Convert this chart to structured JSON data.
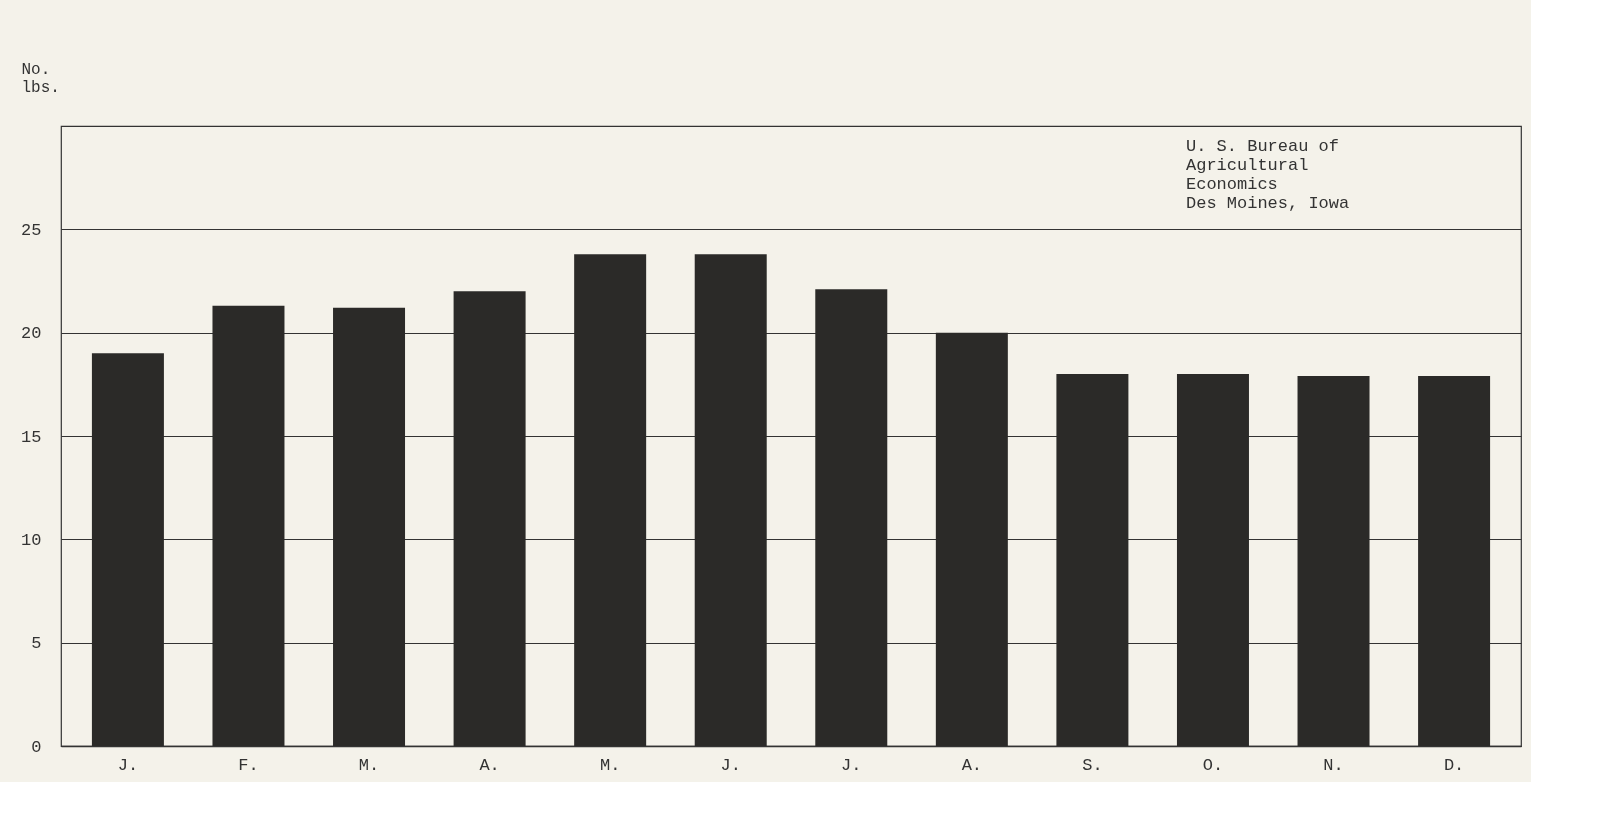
{
  "chart_data": {
    "type": "bar",
    "ylabel": "No. lbs.",
    "categories": [
      "J.",
      "F.",
      "M.",
      "A.",
      "M.",
      "J.",
      "J.",
      "A.",
      "S.",
      "O.",
      "N.",
      "D."
    ],
    "values": [
      19.0,
      21.3,
      21.2,
      22.0,
      23.8,
      23.8,
      22.1,
      20.0,
      18.0,
      18.0,
      17.9,
      17.9
    ],
    "color": "#2b2a28",
    "ylim": [
      0,
      30
    ],
    "yticks": [
      0,
      5,
      10,
      15,
      20,
      25
    ],
    "grid": "y",
    "annotations": [
      "U. S. Bureau of\nAgricultural\nEconomics\nDes Moines, Iowa"
    ]
  }
}
